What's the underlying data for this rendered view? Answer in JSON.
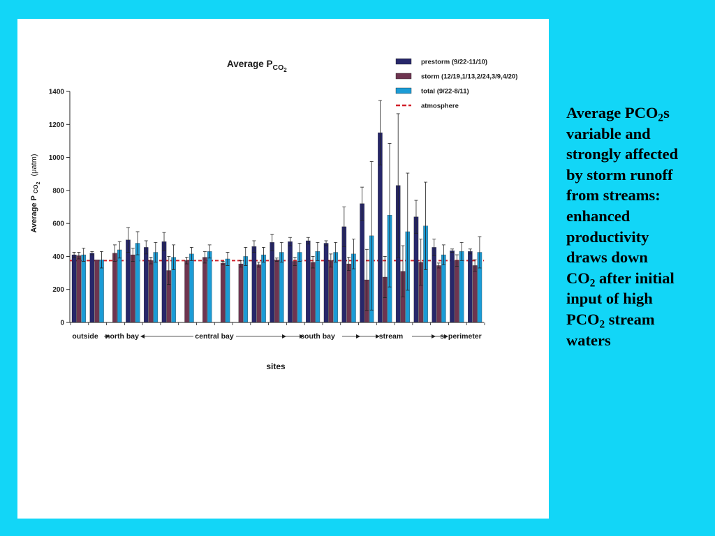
{
  "slide": {
    "background": "#12d6f7",
    "text_lines": [
      {
        "parts": [
          {
            "t": "Average PCO"
          },
          {
            "sub": "2"
          },
          {
            "t": "s"
          }
        ]
      },
      {
        "parts": [
          {
            "t": "variable and"
          }
        ]
      },
      {
        "parts": [
          {
            "t": "strongly affected"
          }
        ]
      },
      {
        "parts": [
          {
            "t": "by storm runoff"
          }
        ]
      },
      {
        "parts": [
          {
            "t": "from streams:"
          }
        ]
      },
      {
        "parts": [
          {
            "t": "enhanced"
          }
        ]
      },
      {
        "parts": [
          {
            "t": "productivity"
          }
        ]
      },
      {
        "parts": [
          {
            "t": "draws down"
          }
        ]
      },
      {
        "parts": [
          {
            "t": "CO"
          },
          {
            "sub": "2"
          },
          {
            "t": " after initial"
          }
        ]
      },
      {
        "parts": [
          {
            "t": "input of high"
          }
        ]
      },
      {
        "parts": [
          {
            "t": "PCO"
          },
          {
            "sub": "2"
          },
          {
            "t": " stream"
          }
        ]
      },
      {
        "parts": [
          {
            "t": "waters"
          }
        ]
      }
    ]
  },
  "chart_data": {
    "type": "bar",
    "title": {
      "main": "Average P",
      "sub": "CO",
      "subsub": "2"
    },
    "ylabel": {
      "main": "Average P",
      "sub": "CO",
      "subsub": "2",
      "unit": "(μatm)"
    },
    "xlabel": "sites",
    "ylim": [
      0,
      1400
    ],
    "yticks": [
      0,
      200,
      400,
      600,
      800,
      1000,
      1200,
      1400
    ],
    "atmosphere_level": 375,
    "colors": {
      "prestorm": "#27276a",
      "storm": "#6e3550",
      "total": "#1b9cd6",
      "atmosphere": "#d1202a"
    },
    "legend": {
      "placement": "top-right",
      "entries": [
        {
          "key": "prestorm",
          "label": "prestorm (9/22-11/10)"
        },
        {
          "key": "storm",
          "label": "storm (12/19,1/13,2/24,3/9,4/20)"
        },
        {
          "key": "total",
          "label": "total (9/22-8/11)"
        },
        {
          "key": "atmosphere",
          "label": "atmosphere"
        }
      ]
    },
    "series_keys": [
      "prestorm",
      "storm",
      "total"
    ],
    "sites": [
      {
        "prestorm": [
          410,
          15
        ],
        "storm": [
          405,
          20
        ],
        "total": [
          410,
          40
        ]
      },
      {
        "prestorm": [
          420,
          10
        ],
        "storm": [
          380,
          0
        ],
        "total": [
          380,
          50
        ]
      },
      {
        "prestorm": null,
        "storm": [
          420,
          50
        ],
        "total": [
          440,
          50
        ]
      },
      {
        "prestorm": [
          500,
          75
        ],
        "storm": [
          410,
          40
        ],
        "total": [
          480,
          70
        ]
      },
      {
        "prestorm": [
          455,
          40
        ],
        "storm": [
          375,
          20
        ],
        "total": [
          425,
          60
        ]
      },
      {
        "prestorm": [
          490,
          55
        ],
        "storm": [
          315,
          85
        ],
        "total": [
          395,
          75
        ]
      },
      {
        "prestorm": null,
        "storm": [
          375,
          20
        ],
        "total": [
          415,
          40
        ]
      },
      {
        "prestorm": null,
        "storm": [
          395,
          35
        ],
        "total": [
          430,
          40
        ]
      },
      {
        "prestorm": null,
        "storm": [
          360,
          10
        ],
        "total": [
          385,
          40
        ]
      },
      {
        "prestorm": null,
        "storm": [
          355,
          20
        ],
        "total": [
          400,
          55
        ]
      },
      {
        "prestorm": [
          460,
          35
        ],
        "storm": [
          350,
          15
        ],
        "total": [
          410,
          45
        ]
      },
      {
        "prestorm": [
          485,
          50
        ],
        "storm": [
          380,
          10
        ],
        "total": [
          425,
          60
        ]
      },
      {
        "prestorm": [
          490,
          25
        ],
        "storm": [
          370,
          25
        ],
        "total": [
          425,
          55
        ]
      },
      {
        "prestorm": [
          495,
          20
        ],
        "storm": [
          365,
          35
        ],
        "total": [
          430,
          55
        ]
      },
      {
        "prestorm": [
          480,
          15
        ],
        "storm": [
          375,
          40
        ],
        "total": [
          425,
          60
        ]
      },
      {
        "prestorm": [
          580,
          120
        ],
        "storm": [
          355,
          40
        ],
        "total": [
          415,
          90
        ]
      },
      {
        "prestorm": [
          720,
          100
        ],
        "storm": [
          258,
          185
        ],
        "total": [
          525,
          450
        ]
      },
      {
        "prestorm": [
          1150,
          195
        ],
        "storm": [
          275,
          125
        ],
        "total": [
          650,
          435
        ]
      },
      {
        "prestorm": [
          830,
          435
        ],
        "storm": [
          310,
          155
        ],
        "total": [
          550,
          355
        ]
      },
      {
        "prestorm": [
          640,
          100
        ],
        "storm": [
          365,
          140
        ],
        "total": [
          585,
          265
        ]
      },
      {
        "prestorm": [
          455,
          50
        ],
        "storm": [
          345,
          15
        ],
        "total": [
          410,
          60
        ]
      },
      {
        "prestorm": [
          435,
          10
        ],
        "storm": [
          375,
          35
        ],
        "total": [
          430,
          55
        ]
      },
      {
        "prestorm": [
          430,
          15
        ],
        "storm": [
          345,
          35
        ],
        "total": [
          425,
          95
        ]
      }
    ],
    "region_labels": [
      "outside",
      "north bay",
      "central bay",
      "south bay",
      "stream",
      "s. perimeter"
    ]
  }
}
